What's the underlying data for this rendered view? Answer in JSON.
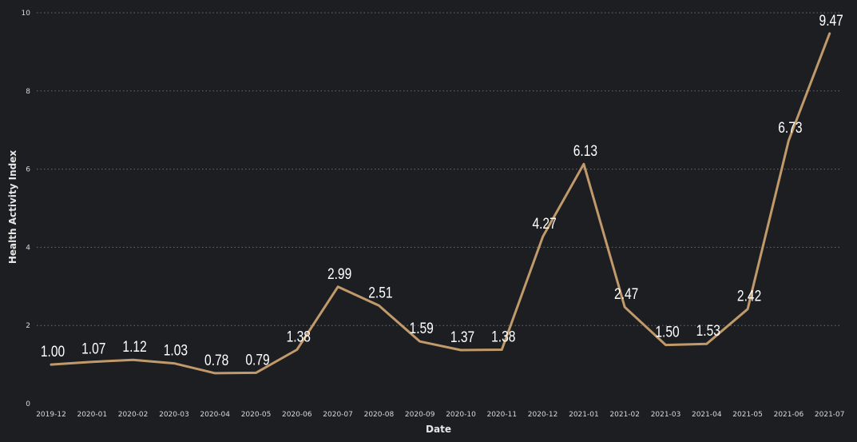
{
  "colors": {
    "background": "#1c1e21",
    "line": "#c19a6b",
    "grid": "#6b6d70",
    "text": "#ffffff"
  },
  "chart_data": {
    "type": "line",
    "title": "",
    "xlabel": "Date",
    "ylabel": "Health Activity Index",
    "ylim": [
      0,
      10
    ],
    "yticks": [
      "0",
      "2",
      "4",
      "6",
      "8",
      "10"
    ],
    "grid": "horizontal-dotted",
    "categories": [
      "2019-12",
      "2020-01",
      "2020-02",
      "2020-03",
      "2020-04",
      "2020-05",
      "2020-06",
      "2020-07",
      "2020-08",
      "2020-09",
      "2020-10",
      "2020-11",
      "2020-12",
      "2021-01",
      "2021-02",
      "2021-03",
      "2021-04",
      "2021-05",
      "2021-06",
      "2021-07"
    ],
    "series": [
      {
        "values": [
          1.0,
          1.07,
          1.12,
          1.03,
          0.78,
          0.79,
          1.38,
          2.99,
          2.51,
          1.59,
          1.37,
          1.38,
          4.27,
          6.13,
          2.47,
          1.5,
          1.53,
          2.42,
          6.73,
          9.47
        ],
        "labels": [
          "1.00",
          "1.07",
          "1.12",
          "1.03",
          "0.78",
          "0.79",
          "1.38",
          "2.99",
          "2.51",
          "1.59",
          "1.37",
          "1.38",
          "4.27",
          "6.13",
          "2.47",
          "1.50",
          "1.53",
          "2.42",
          "6.73",
          "9.47"
        ]
      }
    ]
  }
}
